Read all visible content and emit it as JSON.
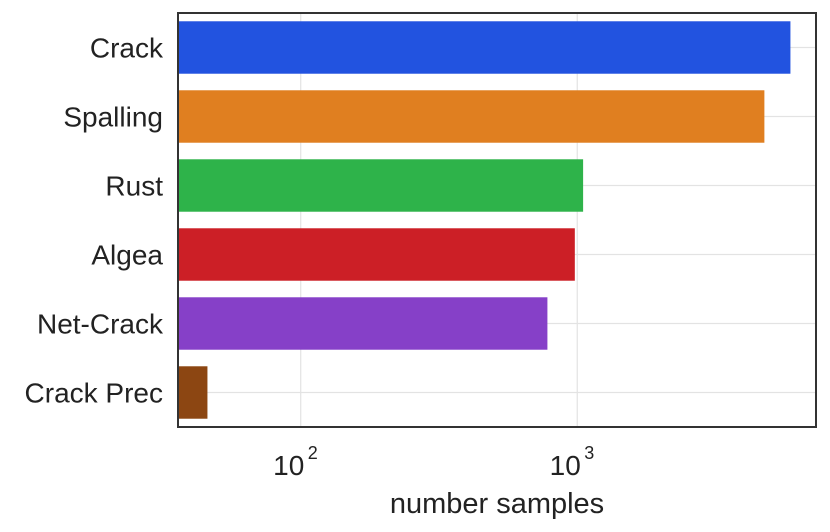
{
  "chart_data": {
    "type": "bar",
    "orientation": "horizontal",
    "categories": [
      "Crack",
      "Spalling",
      "Rust",
      "Algea",
      "Net-Crack",
      "Crack Prec"
    ],
    "values": [
      5900,
      4750,
      1050,
      980,
      780,
      46
    ],
    "colors": [
      "#2253e0",
      "#e07f20",
      "#2eb34a",
      "#cc1f26",
      "#8640c8",
      "#8c4612"
    ],
    "title": "",
    "xlabel": "number samples",
    "ylabel": "",
    "xscale": "log",
    "xlim": [
      36,
      7300
    ],
    "xticks": [
      {
        "value": 100,
        "base": "10",
        "exp": "2"
      },
      {
        "value": 1000,
        "base": "10",
        "exp": "3"
      }
    ],
    "grid": true,
    "legend": "none"
  }
}
